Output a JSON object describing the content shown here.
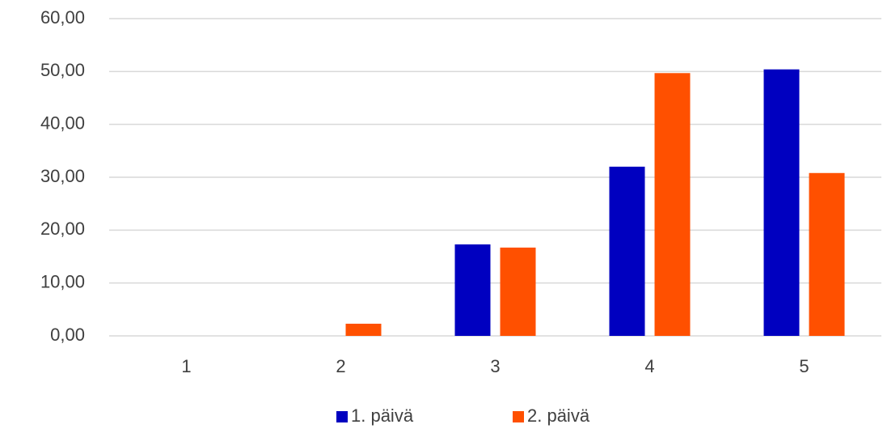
{
  "chart_data": {
    "type": "bar",
    "categories": [
      "1",
      "2",
      "3",
      "4",
      "5"
    ],
    "series": [
      {
        "name": "1. päivä",
        "color": "#0000c0",
        "values": [
          0,
          0,
          17.3,
          32.0,
          50.4
        ]
      },
      {
        "name": "2. päivä",
        "color": "#ff5000",
        "values": [
          0,
          2.3,
          16.7,
          49.7,
          30.8
        ]
      }
    ],
    "ylim": [
      0,
      60
    ],
    "yticks": [
      {
        "value": 0,
        "label": "0,00"
      },
      {
        "value": 10,
        "label": "10,00"
      },
      {
        "value": 20,
        "label": "20,00"
      },
      {
        "value": 30,
        "label": "30,00"
      },
      {
        "value": 40,
        "label": "40,00"
      },
      {
        "value": 50,
        "label": "50,00"
      },
      {
        "value": 60,
        "label": "60,00"
      }
    ],
    "grid": true,
    "legend": "bottom"
  }
}
